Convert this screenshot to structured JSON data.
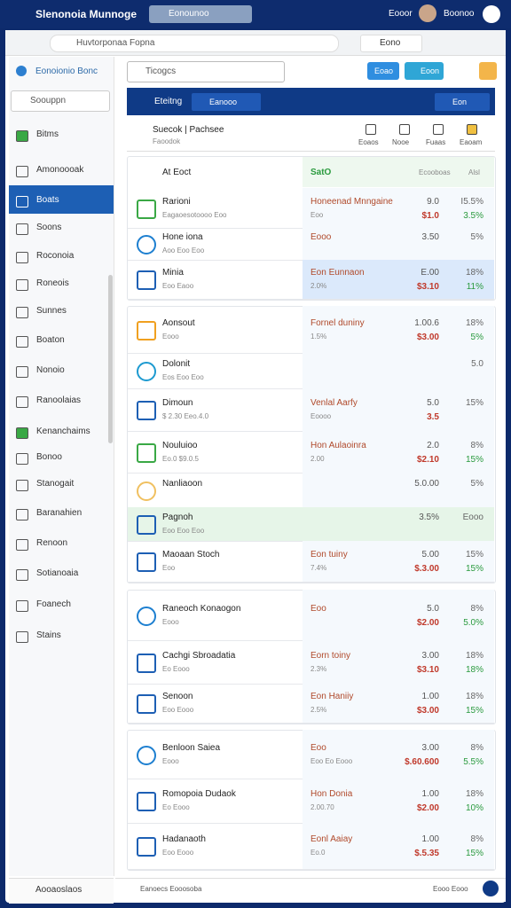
{
  "topbar": {
    "app_title": "Slenonoia Munnoge",
    "search": "Eonounoo",
    "user": "Eooor",
    "user2": "Boonoo"
  },
  "browser": {
    "url": "Huvtorponaa Fopna",
    "tab": "Eono"
  },
  "app": {
    "search": "Ticogcs",
    "buttons": [
      "Eoao",
      "Eoon"
    ]
  },
  "sidebar": {
    "brand": "Eonoionio Bonc",
    "search": "Soouppn",
    "items": [
      "Bitms",
      "Amonoooak",
      "Boats",
      "Soons",
      "Roconoia",
      "Roneois",
      "Sunnes",
      "Boaton",
      "Nonoio",
      "Ranoolaias",
      "Kenanchaims",
      "Bonoo",
      "Stanogait",
      "Baranahien",
      "Renoon",
      "Sotianoaia",
      "Foanech",
      "Stains"
    ],
    "footer": "Aooaoslaos"
  },
  "header": {
    "title": "Eteitng",
    "search": "Eanooo",
    "action": "Eon",
    "subtitle": "Suecok | Pachsee",
    "subtitle2": "Faoodok",
    "tabs": [
      "Eoaos",
      "Nooe",
      "Fuaas",
      "Eaoam"
    ]
  },
  "list_header": {
    "name": "At Eoct",
    "status": "SatO",
    "col": "Ecooboas",
    "col2": "Alsl"
  },
  "rows": [
    {
      "title": "Rarioni",
      "sub": "Eagaoesotoooo Eoo",
      "detail": "Honeenad Mnngaine",
      "detail2": "Eoo",
      "v1": "9.0",
      "v2": "$1.0",
      "p1": "I5.5%",
      "p2": "3.5%"
    },
    {
      "title": "Hone iona",
      "sub": "Aoo Eoo Eoo",
      "detail": "Eooo",
      "detail2": "",
      "v1": "3.50",
      "v2": "",
      "p1": "5%",
      "p2": ""
    },
    {
      "title": "Minia",
      "sub": "Eoo Eaoo",
      "detail": "Eon Eunnaon",
      "detail2": "2.0%",
      "v1": "E.00",
      "v2": "$3.10",
      "p1": "18%",
      "p2": "11%"
    },
    {
      "title": "Aonsout",
      "sub": "Eooo",
      "detail": "Fornel duniny",
      "detail2": "1.5%",
      "v1": "1.00.6",
      "v2": "$3.00",
      "p1": "18%",
      "p2": "5%"
    },
    {
      "title": "Dolonit",
      "sub": "Eos Eoo Eoo",
      "detail": "",
      "detail2": "",
      "v1": "",
      "v2": "",
      "p1": "5.0",
      "p2": ""
    },
    {
      "title": "Dimoun",
      "sub": "$ 2.30 Eeo.4.0",
      "detail": "Venlal Aarfy",
      "detail2": "Eoooo",
      "v1": "5.0",
      "v2": "3.5",
      "p1": "15%",
      "p2": ""
    },
    {
      "title": "Nouluioo",
      "sub": "Eo.0 $9.0.5",
      "detail": "Hon Aulaoinra",
      "detail2": "2.00",
      "v1": "2.0",
      "v2": "$2.10",
      "p1": "8%",
      "p2": "15%"
    },
    {
      "title": "Nanliaoon",
      "sub": "",
      "detail": "",
      "detail2": "",
      "v1": "5.0.00",
      "v2": "",
      "p1": "5%",
      "p2": ""
    },
    {
      "title": "Pagnoh",
      "sub": "Eoo Eoo Eoo",
      "detail": "",
      "detail2": "",
      "v1": "3.5%",
      "v2": "",
      "p1": "Eooo",
      "p2": ""
    },
    {
      "title": "Maoaan Stoch",
      "sub": "Eoo",
      "detail": "Eon tuiny",
      "detail2": "7.4%",
      "v1": "5.00",
      "v2": "$.3.00",
      "p1": "15%",
      "p2": "15%"
    },
    {
      "title": "Raneoch Konaogon",
      "sub": "Eooo",
      "detail": "Eoo",
      "detail2": "",
      "v1": "5.0",
      "v2": "$2.00",
      "p1": "8%",
      "p2": "5.0%"
    },
    {
      "title": "Cachgi Sbroadatia",
      "sub": "Eo Eooo",
      "detail": "Eorn toiny",
      "detail2": "2.3%",
      "v1": "3.00",
      "v2": "$3.10",
      "p1": "18%",
      "p2": "18%"
    },
    {
      "title": "Senoon",
      "sub": "Eoo Eooo",
      "detail": "Eon Haniiy",
      "detail2": "2.5%",
      "v1": "1.00",
      "v2": "$3.00",
      "p1": "18%",
      "p2": "15%"
    },
    {
      "title": "Benloon Saiea",
      "sub": "Eooo",
      "detail": "Eoo",
      "detail2": "Eoo Eo Eooo",
      "v1": "3.00",
      "v2": "$.60.600",
      "p1": "8%",
      "p2": "5.5%"
    },
    {
      "title": "Romopoia Dudaok",
      "sub": "Eo Eooo",
      "detail": "Hon Donia",
      "detail2": "2.00.70",
      "v1": "1.00",
      "v2": "$2.00",
      "p1": "18%",
      "p2": "10%"
    },
    {
      "title": "Hadanaoth",
      "sub": "Eoo Eooo",
      "detail": "Eonl Aaiay",
      "detail2": "Eo.0",
      "v1": "1.00",
      "v2": "$.5.35",
      "p1": "8%",
      "p2": "15%"
    }
  ],
  "footer": {
    "left": "Eanoecs Eooosoba",
    "right": "Eooo Eooo"
  }
}
